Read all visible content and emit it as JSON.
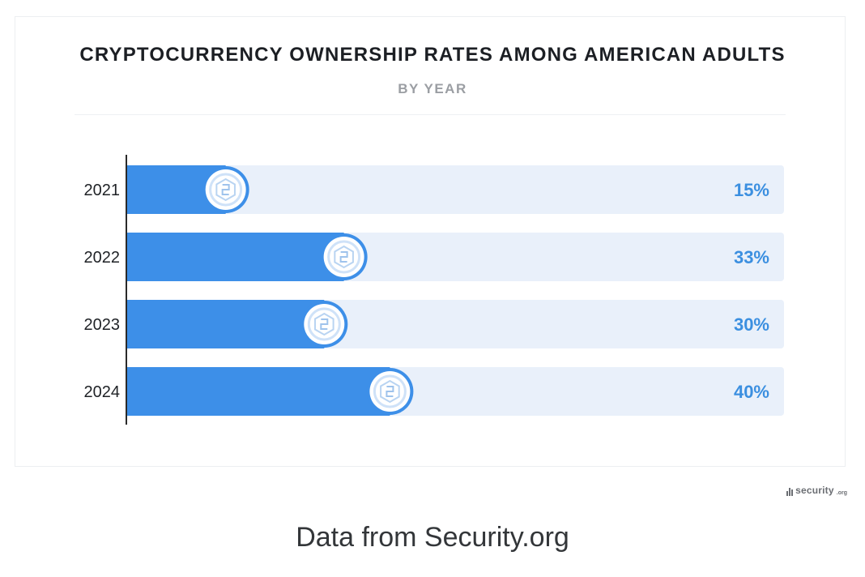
{
  "chart_data": {
    "type": "bar",
    "orientation": "horizontal",
    "title": "CRYPTOCURRENCY OWNERSHIP RATES AMONG AMERICAN ADULTS",
    "subtitle": "BY YEAR",
    "categories": [
      "2021",
      "2022",
      "2023",
      "2024"
    ],
    "values": [
      15,
      33,
      30,
      40
    ],
    "value_labels": [
      "15%",
      "33%",
      "30%",
      "40%"
    ],
    "xlim": [
      0,
      100
    ],
    "unit": "%",
    "grid": false,
    "legend": "none",
    "colors": {
      "bar": "#3d8fe8",
      "track": "#e9f0fa",
      "value_label": "#3b8fe0",
      "axis": "#2a2a2a",
      "marker_ring": "#3d8fe8",
      "marker_fill": "#ffffff",
      "marker_inner": "#cfe2f8"
    },
    "marker_icon": "crypto-coin-icon"
  },
  "branding": {
    "logo_text": "security",
    "logo_tld": ".org"
  },
  "caption": "Data from Security.org"
}
